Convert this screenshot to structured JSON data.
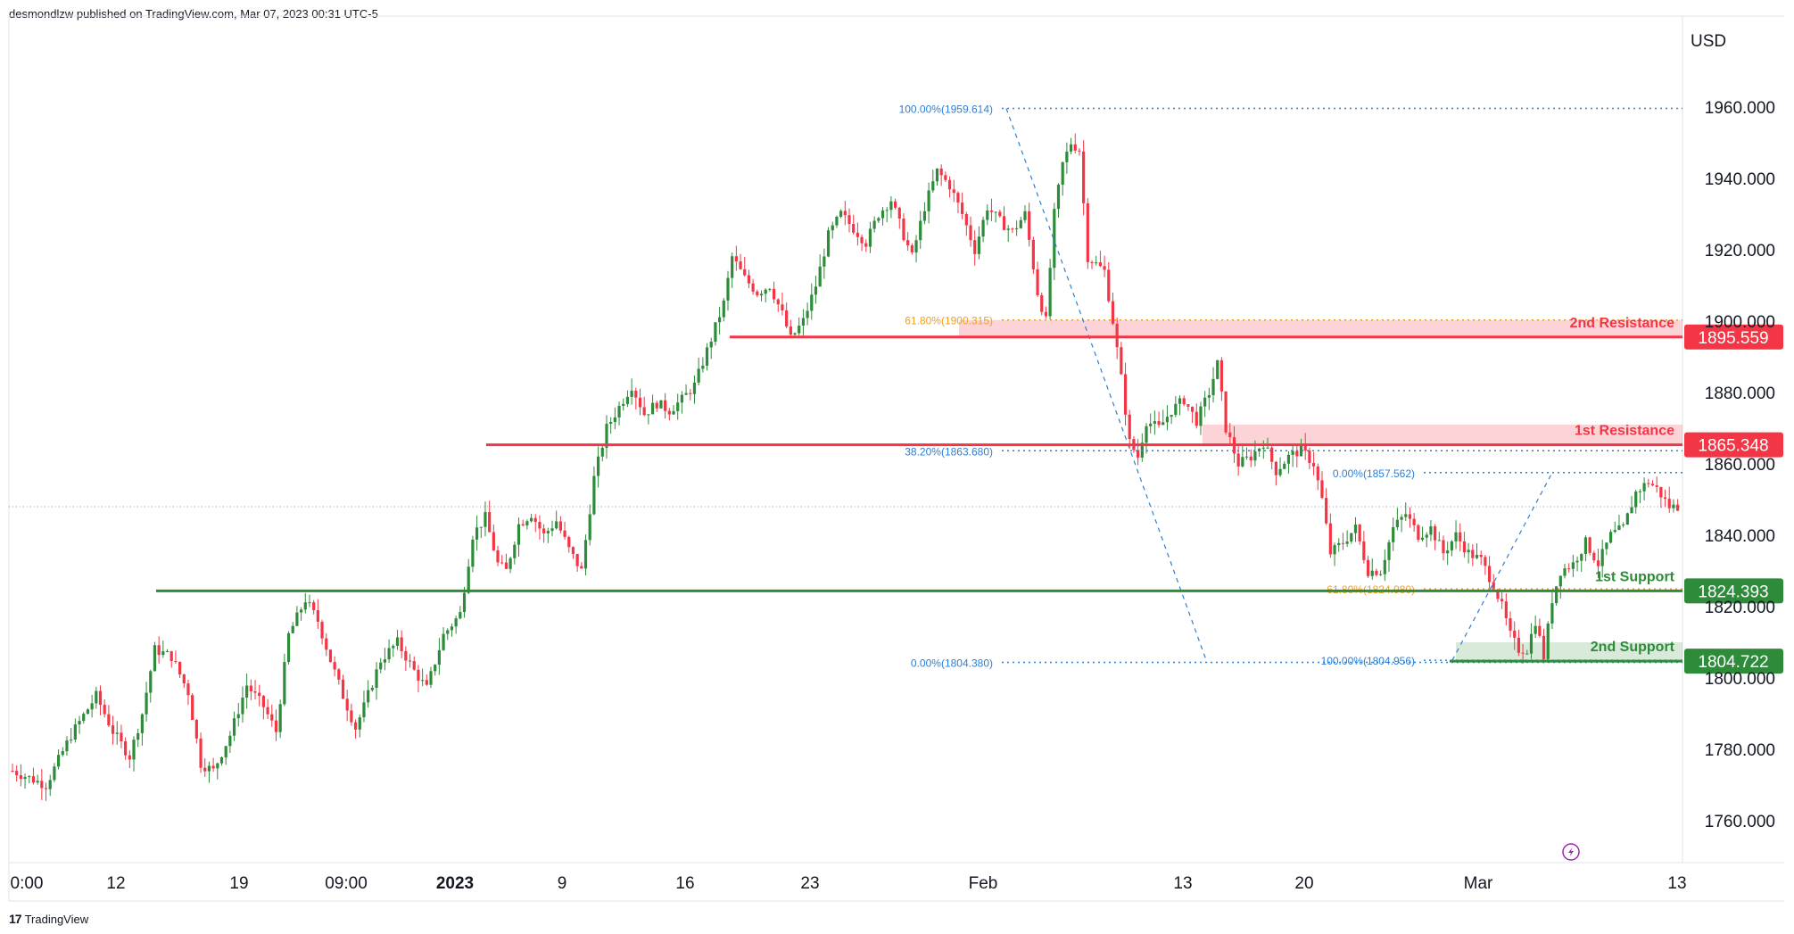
{
  "header": {
    "published_text": "desmondlzw published on TradingView.com, Mar 07, 2023 00:31 UTC-5"
  },
  "footer": {
    "brand": "TradingView",
    "logo_icon": "tradingview-logo-icon"
  },
  "colors": {
    "up": "#2e8b3a",
    "down": "#f23645",
    "resistance": "#f23645",
    "support": "#2e8b3a",
    "fib_blue": "#2d7fd3",
    "fib_orange": "#f0a020",
    "grid": "#f0f3fa"
  },
  "chart_data": {
    "type": "candlestick",
    "currency_label": "USD",
    "y_axis": {
      "min": 1744,
      "max": 1984,
      "ticks": [
        "1960.000",
        "1940.000",
        "1920.000",
        "1900.000",
        "1880.000",
        "1860.000",
        "1840.000",
        "1820.000",
        "1800.000",
        "1780.000",
        "1760.000"
      ]
    },
    "x_axis": {
      "ticks": [
        "0:00",
        "12",
        "19",
        "09:00",
        "2023",
        "9",
        "16",
        "23",
        "Feb",
        "13",
        "20",
        "Mar",
        "13"
      ]
    },
    "levels": [
      {
        "name": "2nd Resistance",
        "value": 1895.559,
        "label": "1895.559",
        "kind": "resistance"
      },
      {
        "name": "1st Resistance",
        "value": 1865.348,
        "label": "1865.348",
        "kind": "resistance"
      },
      {
        "name": "1st Support",
        "value": 1824.393,
        "label": "1824.393",
        "kind": "support"
      },
      {
        "name": "2nd Support",
        "value": 1804.722,
        "label": "1804.722",
        "kind": "support"
      }
    ],
    "last_price": 1848,
    "fib_retracement_1": {
      "labels": [
        {
          "text": "100.00%(1959.614)",
          "value": 1959.614,
          "color": "blue"
        },
        {
          "text": "61.80%(1900.315)",
          "value": 1900.315,
          "color": "orange"
        },
        {
          "text": "38.20%(1863.680)",
          "value": 1863.68,
          "color": "blue"
        },
        {
          "text": "0.00%(1804.380)",
          "value": 1804.38,
          "color": "blue"
        }
      ]
    },
    "fib_retracement_2": {
      "labels": [
        {
          "text": "0.00%(1857.562)",
          "value": 1857.562,
          "color": "blue"
        },
        {
          "text": "61.80%(1824.980)",
          "value": 1824.98,
          "color": "orange"
        },
        {
          "text": "100.00%(1804.956)",
          "value": 1804.956,
          "color": "blue"
        }
      ]
    },
    "path_points": [
      [
        0,
        1774
      ],
      [
        8,
        1770
      ],
      [
        14,
        1784
      ],
      [
        20,
        1795
      ],
      [
        24,
        1785
      ],
      [
        28,
        1778
      ],
      [
        31,
        1790
      ],
      [
        34,
        1808
      ],
      [
        38,
        1806
      ],
      [
        42,
        1796
      ],
      [
        45,
        1776
      ],
      [
        48,
        1774
      ],
      [
        52,
        1784
      ],
      [
        56,
        1798
      ],
      [
        60,
        1792
      ],
      [
        63,
        1785
      ],
      [
        66,
        1812
      ],
      [
        70,
        1822
      ],
      [
        73,
        1816
      ],
      [
        76,
        1805
      ],
      [
        79,
        1795
      ],
      [
        82,
        1786
      ],
      [
        84,
        1792
      ],
      [
        88,
        1805
      ],
      [
        92,
        1810
      ],
      [
        96,
        1802
      ],
      [
        99,
        1797
      ],
      [
        103,
        1812
      ],
      [
        107,
        1818
      ],
      [
        110,
        1840
      ],
      [
        113,
        1845
      ],
      [
        116,
        1832
      ],
      [
        118,
        1830
      ],
      [
        121,
        1843
      ],
      [
        124,
        1846
      ],
      [
        127,
        1840
      ],
      [
        130,
        1844
      ],
      [
        133,
        1836
      ],
      [
        136,
        1830
      ],
      [
        139,
        1856
      ],
      [
        142,
        1870
      ],
      [
        145,
        1876
      ],
      [
        148,
        1882
      ],
      [
        151,
        1874
      ],
      [
        154,
        1877
      ],
      [
        157,
        1875
      ],
      [
        160,
        1878
      ],
      [
        163,
        1882
      ],
      [
        167,
        1895
      ],
      [
        170,
        1905
      ],
      [
        172,
        1918
      ],
      [
        175,
        1912
      ],
      [
        178,
        1908
      ],
      [
        181,
        1910
      ],
      [
        184,
        1902
      ],
      [
        186,
        1895
      ],
      [
        189,
        1900
      ],
      [
        192,
        1910
      ],
      [
        195,
        1924
      ],
      [
        198,
        1930
      ],
      [
        201,
        1926
      ],
      [
        204,
        1922
      ],
      [
        207,
        1930
      ],
      [
        210,
        1934
      ],
      [
        213,
        1924
      ],
      [
        215,
        1918
      ],
      [
        218,
        1932
      ],
      [
        221,
        1942
      ],
      [
        224,
        1938
      ],
      [
        227,
        1930
      ],
      [
        230,
        1920
      ],
      [
        233,
        1932
      ],
      [
        236,
        1928
      ],
      [
        239,
        1925
      ],
      [
        242,
        1930
      ],
      [
        245,
        1908
      ],
      [
        247,
        1900
      ],
      [
        249,
        1930
      ],
      [
        251,
        1944
      ],
      [
        253,
        1950
      ],
      [
        255,
        1948
      ],
      [
        257,
        1918
      ],
      [
        259,
        1916
      ],
      [
        261,
        1914
      ],
      [
        263,
        1900
      ],
      [
        265,
        1884
      ],
      [
        267,
        1866
      ],
      [
        269,
        1862
      ],
      [
        271,
        1872
      ],
      [
        274,
        1870
      ],
      [
        277,
        1875
      ],
      [
        280,
        1878
      ],
      [
        283,
        1872
      ],
      [
        286,
        1880
      ],
      [
        288,
        1888
      ],
      [
        290,
        1870
      ],
      [
        293,
        1860
      ],
      [
        296,
        1862
      ],
      [
        299,
        1866
      ],
      [
        302,
        1858
      ],
      [
        305,
        1862
      ],
      [
        308,
        1864
      ],
      [
        311,
        1860
      ],
      [
        313,
        1850
      ],
      [
        315,
        1835
      ],
      [
        318,
        1838
      ],
      [
        321,
        1842
      ],
      [
        324,
        1830
      ],
      [
        327,
        1830
      ],
      [
        330,
        1842
      ],
      [
        333,
        1846
      ],
      [
        336,
        1840
      ],
      [
        339,
        1842
      ],
      [
        342,
        1835
      ],
      [
        345,
        1840
      ],
      [
        348,
        1835
      ],
      [
        351,
        1833
      ],
      [
        354,
        1826
      ],
      [
        356,
        1820
      ],
      [
        358,
        1812
      ],
      [
        360,
        1808
      ],
      [
        362,
        1808
      ],
      [
        364,
        1816
      ],
      [
        366,
        1806
      ],
      [
        368,
        1822
      ],
      [
        370,
        1830
      ],
      [
        373,
        1832
      ],
      [
        376,
        1838
      ],
      [
        379,
        1832
      ],
      [
        382,
        1840
      ],
      [
        385,
        1842
      ],
      [
        388,
        1852
      ],
      [
        391,
        1855
      ],
      [
        393,
        1853
      ],
      [
        396,
        1848
      ],
      [
        398,
        1848
      ]
    ]
  }
}
